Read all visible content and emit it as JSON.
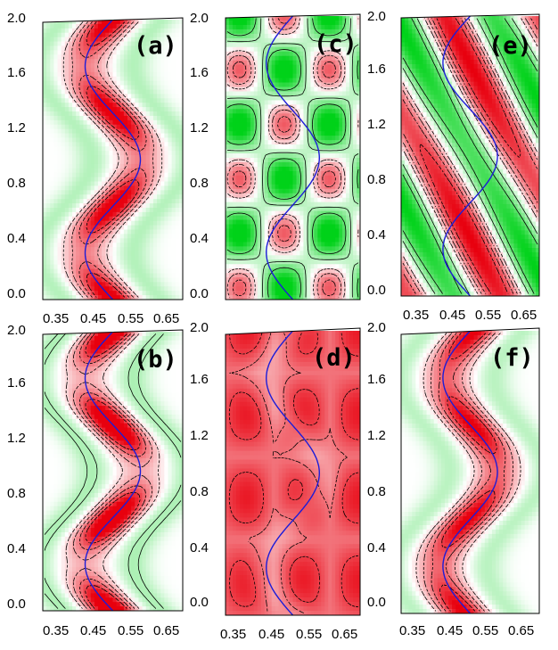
{
  "colors": {
    "positive": "#e8000e",
    "negative": "#00d219",
    "curve": "#1c1cd8",
    "contour": "#000000",
    "background": "#ffffff"
  },
  "chart_data": [
    {
      "type": "heatmap",
      "title": "",
      "panel_label": "(a)",
      "xlabel": "",
      "ylabel": "",
      "xlim": [
        0.3,
        0.68
      ],
      "ylim": [
        0.0,
        2.0
      ],
      "xticks": [
        "0.35",
        "0.45",
        "0.55",
        "0.65"
      ],
      "yticks": [
        "0.0",
        "0.4",
        "0.8",
        "1.2",
        "1.6",
        "2.0"
      ],
      "field": {
        "ridge_amp": 0.06,
        "ridge_base": 1.0,
        "wave": 0.3,
        "green": 0.55
      },
      "wave_curve": {
        "center": 0.49,
        "amp": 0.075,
        "periods": 1.5
      }
    },
    {
      "type": "heatmap",
      "title": "",
      "panel_label": "(c)",
      "xlabel": "",
      "ylabel": "",
      "xlim": [
        0.3,
        0.68
      ],
      "ylim": [
        0.0,
        2.0
      ],
      "xticks": [],
      "yticks": [
        "0.0",
        "0.4",
        "0.8",
        "1.2",
        "1.6",
        "2.0"
      ],
      "field": {
        "checker": 1.0
      },
      "wave_curve": {
        "center": 0.49,
        "amp": 0.075,
        "periods": 1.5
      }
    },
    {
      "type": "heatmap",
      "title": "",
      "panel_label": "(e)",
      "xlabel": "",
      "ylabel": "",
      "xlim": [
        0.3,
        0.68
      ],
      "ylim": [
        0.0,
        2.0
      ],
      "xticks": [
        "0.35",
        "0.45",
        "0.55",
        "0.65"
      ],
      "yticks": [
        "0.0",
        "0.4",
        "0.8",
        "1.2",
        "1.6",
        "2.0"
      ],
      "field": {
        "diag": 1.0
      },
      "wave_curve": {
        "center": 0.49,
        "amp": 0.075,
        "periods": 1.5
      }
    },
    {
      "type": "heatmap",
      "title": "",
      "panel_label": "(b)",
      "xlabel": "",
      "ylabel": "",
      "xlim": [
        0.3,
        0.68
      ],
      "ylim": [
        0.0,
        2.0
      ],
      "xticks": [
        "0.35",
        "0.45",
        "0.55",
        "0.65"
      ],
      "yticks": [
        "0.0",
        "0.4",
        "0.8",
        "1.2",
        "1.6",
        "2.0"
      ],
      "field": {
        "ridge_amp": 0.06,
        "ridge_base": 1.0,
        "wave": 0.45,
        "green": 0.6
      },
      "wave_curve": {
        "center": 0.49,
        "amp": 0.075,
        "periods": 1.5
      }
    },
    {
      "type": "heatmap",
      "title": "",
      "panel_label": "(d)",
      "xlabel": "",
      "ylabel": "",
      "xlim": [
        0.3,
        0.68
      ],
      "ylim": [
        0.0,
        2.0
      ],
      "xticks": [
        "0.35",
        "0.45",
        "0.55",
        "0.65"
      ],
      "yticks": [
        "0.0",
        "0.4",
        "0.8",
        "1.2",
        "1.6",
        "2.0"
      ],
      "field": {
        "blob": 1.0
      },
      "wave_curve": {
        "center": 0.49,
        "amp": 0.075,
        "periods": 1.5
      }
    },
    {
      "type": "heatmap",
      "title": "",
      "panel_label": "(f)",
      "xlabel": "",
      "ylabel": "",
      "xlim": [
        0.3,
        0.68
      ],
      "ylim": [
        0.0,
        2.0
      ],
      "xticks": [
        "0.35",
        "0.45",
        "0.55",
        "0.65"
      ],
      "yticks": [
        "0.0",
        "0.4",
        "0.8",
        "1.2",
        "1.6",
        "2.0"
      ],
      "field": {
        "ridge_amp": 0.06,
        "ridge_base": 1.0,
        "wave": 0.2,
        "green": 0.5,
        "tilt": 1.0
      },
      "wave_curve": {
        "center": 0.49,
        "amp": 0.075,
        "periods": 1.5
      }
    }
  ]
}
